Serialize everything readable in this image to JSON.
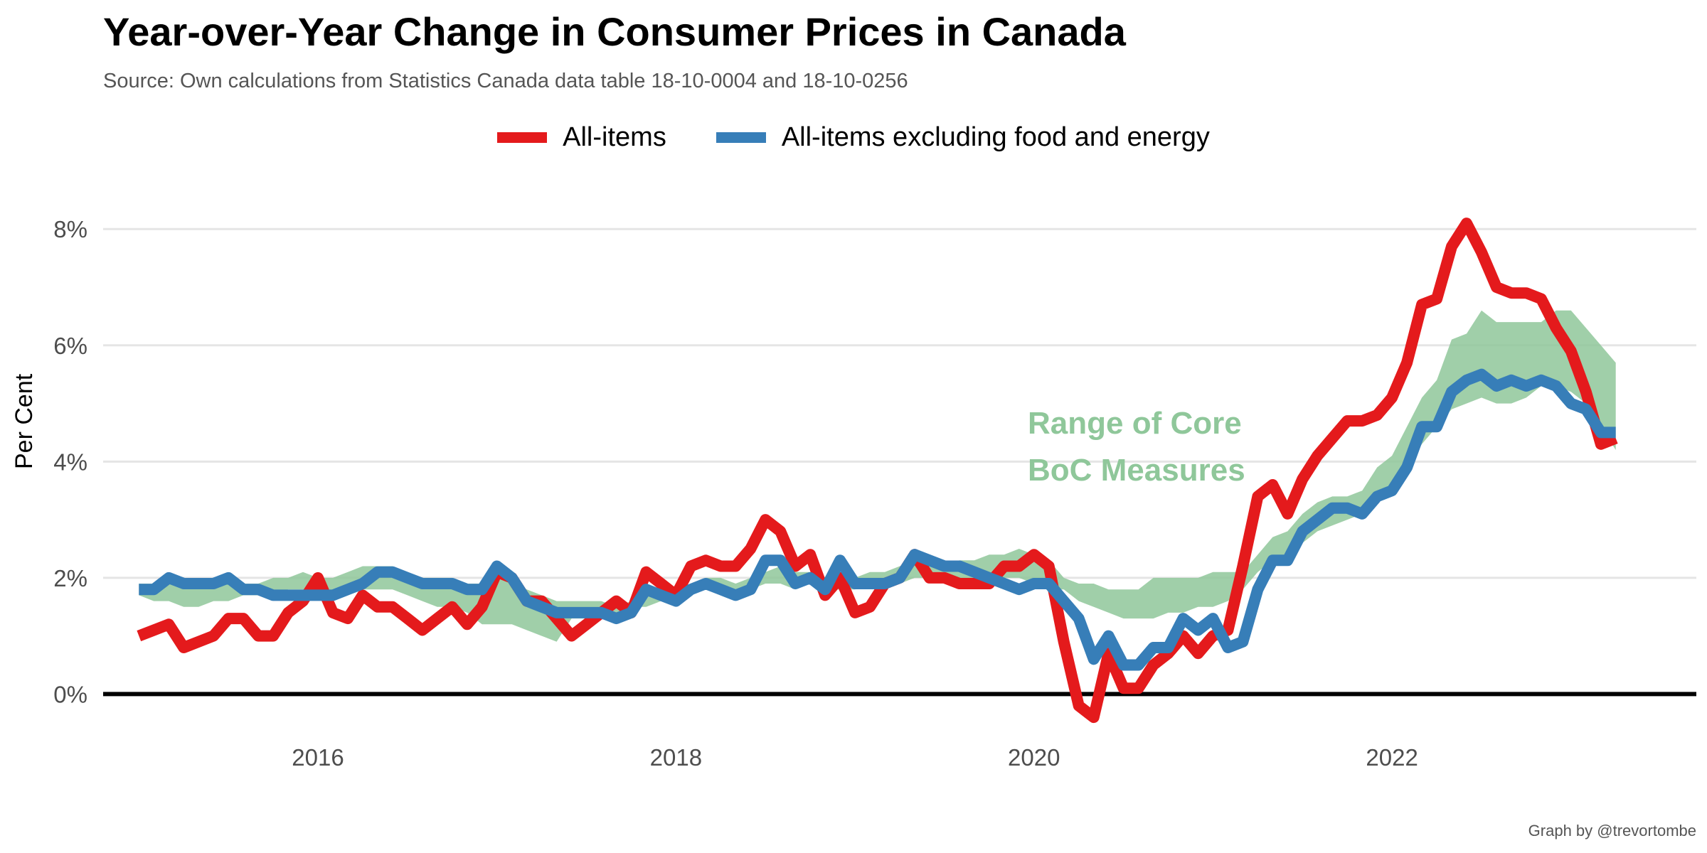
{
  "title": "Year-over-Year Change in Consumer Prices in Canada",
  "subtitle": "Source: Own calculations from Statistics Canada data table 18-10-0004 and 18-10-0256",
  "caption": "Graph by @trevortombe",
  "ylabel": "Per Cent",
  "annotation": [
    "Range of Core",
    "BoC Measures"
  ],
  "legend": [
    {
      "name": "All-items",
      "color": "#e41a1c"
    },
    {
      "name": "All-items excluding food and energy",
      "color": "#377eb8"
    }
  ],
  "chart_data": {
    "type": "line",
    "title": "Year-over-Year Change in Consumer Prices in Canada",
    "ylabel": "Per Cent",
    "xlim": [
      2014.8,
      2023.7
    ],
    "ylim": [
      -0.9,
      8.7
    ],
    "x_ticks": [
      2016,
      2018,
      2020,
      2022
    ],
    "x_tick_labels": [
      "2016",
      "2018",
      "2020",
      "2022"
    ],
    "y_ticks": [
      0,
      2,
      4,
      6,
      8
    ],
    "y_tick_labels": [
      "0%",
      "2%",
      "4%",
      "6%",
      "8%"
    ],
    "grid": "horizontal",
    "legend_position": "top",
    "band_color": "#8fc79a",
    "zero_line_color": "#000000",
    "start": "2015-01",
    "series": [
      {
        "name": "All-items",
        "color": "#e41a1c",
        "values": [
          1.0,
          1.1,
          1.2,
          0.8,
          0.9,
          1.0,
          1.3,
          1.3,
          1.0,
          1.0,
          1.4,
          1.6,
          2.0,
          1.4,
          1.3,
          1.7,
          1.5,
          1.5,
          1.3,
          1.1,
          1.3,
          1.5,
          1.2,
          1.5,
          2.1,
          2.0,
          1.6,
          1.6,
          1.3,
          1.0,
          1.2,
          1.4,
          1.6,
          1.4,
          2.1,
          1.9,
          1.7,
          2.2,
          2.3,
          2.2,
          2.2,
          2.5,
          3.0,
          2.8,
          2.2,
          2.4,
          1.7,
          2.0,
          1.4,
          1.5,
          1.9,
          2.0,
          2.4,
          2.0,
          2.0,
          1.9,
          1.9,
          1.9,
          2.2,
          2.2,
          2.4,
          2.2,
          0.9,
          -0.2,
          -0.4,
          0.7,
          0.1,
          0.1,
          0.5,
          0.7,
          1.0,
          0.7,
          1.0,
          1.1,
          2.2,
          3.4,
          3.6,
          3.1,
          3.7,
          4.1,
          4.4,
          4.7,
          4.7,
          4.8,
          5.1,
          5.7,
          6.7,
          6.8,
          7.7,
          8.1,
          7.6,
          7.0,
          6.9,
          6.9,
          6.8,
          6.3,
          5.9,
          5.2,
          4.3,
          4.4
        ]
      },
      {
        "name": "All-items excluding food and energy",
        "color": "#377eb8",
        "values": [
          1.8,
          1.8,
          2.0,
          1.9,
          1.9,
          1.9,
          2.0,
          1.8,
          1.8,
          1.7,
          1.7,
          1.7,
          1.7,
          1.7,
          1.8,
          1.9,
          2.1,
          2.1,
          2.0,
          1.9,
          1.9,
          1.9,
          1.8,
          1.8,
          2.2,
          2.0,
          1.6,
          1.5,
          1.4,
          1.4,
          1.4,
          1.4,
          1.3,
          1.4,
          1.8,
          1.7,
          1.6,
          1.8,
          1.9,
          1.8,
          1.7,
          1.8,
          2.3,
          2.3,
          1.9,
          2.0,
          1.8,
          2.3,
          1.9,
          1.9,
          1.9,
          2.0,
          2.4,
          2.3,
          2.2,
          2.2,
          2.1,
          2.0,
          1.9,
          1.8,
          1.9,
          1.9,
          1.6,
          1.3,
          0.6,
          1.0,
          0.5,
          0.5,
          0.8,
          0.8,
          1.3,
          1.1,
          1.3,
          0.8,
          0.9,
          1.8,
          2.3,
          2.3,
          2.8,
          3.0,
          3.2,
          3.2,
          3.1,
          3.4,
          3.5,
          3.9,
          4.6,
          4.6,
          5.2,
          5.4,
          5.5,
          5.3,
          5.4,
          5.3,
          5.4,
          5.3,
          5.0,
          4.9,
          4.5,
          4.5
        ]
      }
    ],
    "band": {
      "name": "Range of Core BoC Measures",
      "low": [
        1.7,
        1.6,
        1.6,
        1.5,
        1.5,
        1.6,
        1.6,
        1.7,
        1.7,
        1.7,
        1.8,
        1.8,
        1.7,
        1.7,
        1.8,
        1.8,
        1.8,
        1.8,
        1.7,
        1.6,
        1.5,
        1.5,
        1.4,
        1.2,
        1.2,
        1.2,
        1.1,
        1.0,
        0.9,
        1.3,
        1.3,
        1.4,
        1.3,
        1.5,
        1.5,
        1.6,
        1.7,
        1.7,
        1.8,
        1.7,
        1.8,
        1.8,
        1.9,
        1.9,
        1.8,
        1.9,
        1.8,
        1.8,
        1.8,
        1.9,
        1.9,
        1.9,
        2.0,
        2.0,
        1.9,
        1.9,
        2.0,
        2.0,
        2.0,
        2.0,
        1.9,
        1.8,
        1.8,
        1.6,
        1.5,
        1.4,
        1.3,
        1.3,
        1.3,
        1.4,
        1.4,
        1.5,
        1.5,
        1.6,
        1.8,
        2.1,
        2.3,
        2.4,
        2.6,
        2.8,
        2.9,
        3.0,
        3.1,
        3.3,
        3.5,
        3.9,
        4.3,
        4.6,
        4.9,
        5.0,
        5.1,
        5.0,
        5.0,
        5.1,
        5.3,
        5.3,
        5.2,
        5.0,
        4.6,
        4.2
      ],
      "high": [
        1.9,
        1.9,
        2.0,
        2.0,
        1.9,
        1.9,
        2.0,
        1.9,
        1.9,
        2.0,
        2.0,
        2.1,
        2.0,
        2.0,
        2.1,
        2.2,
        2.2,
        2.2,
        2.1,
        2.0,
        2.0,
        2.0,
        1.9,
        1.9,
        2.1,
        1.9,
        1.8,
        1.7,
        1.6,
        1.6,
        1.6,
        1.6,
        1.5,
        1.6,
        1.8,
        1.8,
        1.8,
        1.9,
        2.0,
        2.0,
        1.9,
        2.0,
        2.1,
        2.2,
        2.1,
        2.1,
        2.0,
        2.0,
        2.0,
        2.1,
        2.1,
        2.2,
        2.3,
        2.3,
        2.2,
        2.3,
        2.3,
        2.4,
        2.4,
        2.5,
        2.4,
        2.3,
        2.0,
        1.9,
        1.9,
        1.8,
        1.8,
        1.8,
        2.0,
        2.0,
        2.0,
        2.0,
        2.1,
        2.1,
        2.1,
        2.4,
        2.7,
        2.8,
        3.1,
        3.3,
        3.4,
        3.4,
        3.5,
        3.9,
        4.1,
        4.6,
        5.1,
        5.4,
        6.1,
        6.2,
        6.6,
        6.4,
        6.4,
        6.4,
        6.4,
        6.6,
        6.6,
        6.3,
        6.0,
        5.7
      ]
    }
  }
}
